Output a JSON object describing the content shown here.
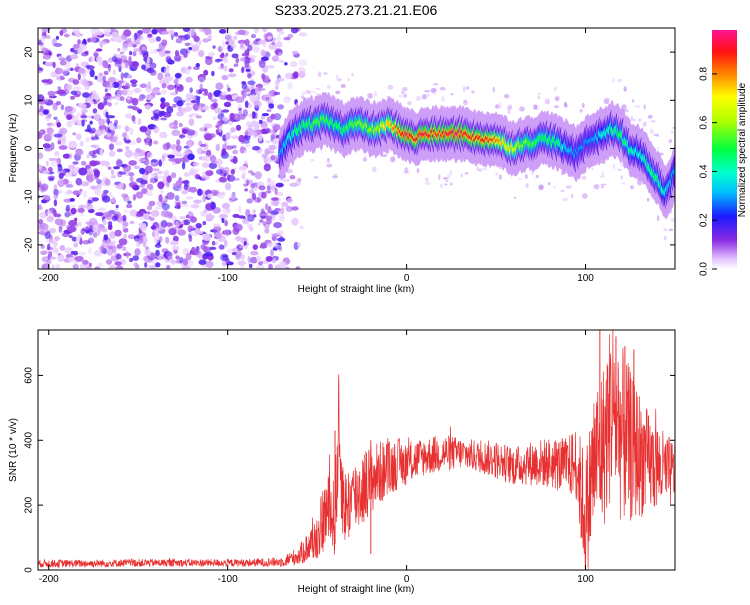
{
  "title": "S233.2025.273.21.21.E06",
  "colors": {
    "snr_line": "#e83030",
    "axis": "#000000",
    "background": "#ffffff"
  },
  "chart_data": [
    {
      "type": "heatmap",
      "xlabel": "Height of straight line (km)",
      "ylabel": "Frequency (Hz)",
      "xlim": [
        -206,
        150
      ],
      "ylim": [
        -25,
        25
      ],
      "x_ticks": [
        -200,
        -100,
        0,
        100
      ],
      "x_tick_labels": [
        "-200",
        "-100",
        "0",
        "100"
      ],
      "y_ticks": [
        -20,
        -10,
        0,
        10,
        20
      ],
      "y_tick_labels": [
        "-20",
        "-10",
        "0",
        "10",
        "20"
      ],
      "noise_region_x": [
        -206,
        -60
      ],
      "ridge": {
        "x": [
          -70,
          -65,
          -60,
          -55,
          -50,
          -45,
          -40,
          -35,
          -30,
          -25,
          -20,
          -15,
          -10,
          -5,
          0,
          5,
          10,
          15,
          20,
          25,
          30,
          35,
          40,
          45,
          50,
          55,
          60,
          65,
          70,
          75,
          80,
          85,
          90,
          95,
          100,
          105,
          110,
          115,
          120,
          125,
          130,
          135,
          140,
          145,
          150
        ],
        "y": [
          -1,
          2,
          4,
          5,
          5,
          6,
          5,
          4,
          5,
          5,
          4,
          4,
          5,
          4,
          3,
          2,
          3,
          3,
          3,
          3,
          3,
          3,
          2,
          2,
          2,
          1,
          0,
          1,
          1,
          2,
          2,
          1,
          0,
          -1,
          1,
          2,
          3,
          4,
          3,
          0,
          -1,
          -3,
          -6,
          -9,
          -5
        ],
        "amplitude": [
          0.3,
          0.4,
          0.5,
          0.5,
          0.55,
          0.55,
          0.5,
          0.5,
          0.55,
          0.6,
          0.6,
          0.65,
          0.75,
          0.85,
          0.95,
          0.9,
          0.95,
          0.9,
          0.9,
          0.95,
          0.95,
          0.9,
          0.9,
          0.9,
          0.85,
          0.75,
          0.7,
          0.6,
          0.55,
          0.5,
          0.5,
          0.5,
          0.35,
          0.3,
          0.3,
          0.3,
          0.4,
          0.45,
          0.5,
          0.45,
          0.4,
          0.45,
          0.5,
          0.4,
          0.3
        ]
      },
      "colorbar": {
        "label": "Normalized spectral amplitude",
        "range": [
          0,
          0.98
        ],
        "ticks": [
          0.0,
          0.2,
          0.4,
          0.6,
          0.8
        ],
        "tick_labels": [
          "0.0",
          "0.2",
          "0.4",
          "0.6",
          "0.8"
        ]
      }
    },
    {
      "type": "line",
      "xlabel": "Height of straight line (km)",
      "ylabel": "SNR (10 * v/v)",
      "xlim": [
        -206,
        150
      ],
      "ylim": [
        0,
        740
      ],
      "x_ticks": [
        -200,
        -100,
        0,
        100
      ],
      "x_tick_labels": [
        "-200",
        "-100",
        "0",
        "100"
      ],
      "y_ticks": [
        0,
        200,
        400,
        600
      ],
      "y_tick_labels": [
        "0",
        "200",
        "400",
        "600"
      ],
      "series": [
        {
          "x": [
            -206,
            -180,
            -150,
            -120,
            -90,
            -70,
            -60,
            -50,
            -45,
            -40,
            -38,
            -35,
            -30,
            -25,
            -20,
            -15,
            -10,
            -5,
            0,
            10,
            20,
            30,
            40,
            50,
            60,
            70,
            80,
            90,
            95,
            100,
            105,
            110,
            115,
            120,
            125,
            130,
            135,
            140,
            145,
            150
          ],
          "y": [
            20,
            20,
            22,
            22,
            22,
            25,
            45,
            100,
            180,
            160,
            420,
            190,
            220,
            250,
            280,
            300,
            310,
            330,
            330,
            350,
            360,
            360,
            350,
            340,
            320,
            330,
            330,
            320,
            330,
            150,
            340,
            380,
            520,
            420,
            380,
            360,
            330,
            320,
            300,
            300
          ],
          "spread": [
            12,
            12,
            12,
            12,
            12,
            15,
            30,
            70,
            120,
            120,
            200,
            120,
            120,
            120,
            110,
            100,
            90,
            80,
            70,
            60,
            60,
            50,
            50,
            60,
            60,
            70,
            80,
            90,
            120,
            220,
            240,
            260,
            300,
            280,
            240,
            200,
            160,
            140,
            120,
            100
          ],
          "peaks": [
            {
              "x": -40,
              "y": 430
            },
            {
              "x": -20,
              "y": 400
            },
            {
              "x": 108,
              "y": 740
            },
            {
              "x": 117,
              "y": 720
            },
            {
              "x": 122,
              "y": 690
            },
            {
              "x": 127,
              "y": 680
            }
          ]
        }
      ]
    }
  ]
}
